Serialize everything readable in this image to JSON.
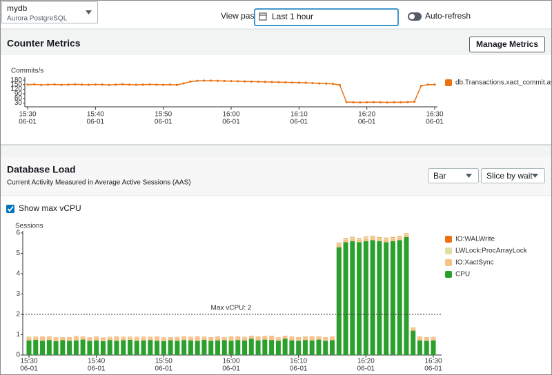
{
  "header": {
    "db_name": "mydb",
    "engine": "Aurora PostgreSQL",
    "view_past_label": "View past",
    "view_past_value": "Last 1 hour",
    "auto_refresh": "Auto-refresh"
  },
  "counter_metrics": {
    "title": "Counter Metrics",
    "button": "Manage Metrics"
  },
  "database_load": {
    "title": "Database Load",
    "subtitle": "Current Activity Measured in Average Active Sessions (AAS)",
    "chart_type_select": "Bar",
    "slice_select": "Slice by wait",
    "show_max_vcpu": "Show max vCPU"
  },
  "chart_data": [
    {
      "type": "line",
      "ylabel": "Commits/s",
      "categories": [
        [
          "15:30",
          "06-01"
        ],
        null,
        null,
        null,
        null,
        null,
        null,
        null,
        null,
        null,
        [
          "15:40",
          "06-01"
        ],
        null,
        null,
        null,
        null,
        null,
        null,
        null,
        null,
        null,
        [
          "15:50",
          "06-01"
        ],
        null,
        null,
        null,
        null,
        null,
        null,
        null,
        null,
        null,
        [
          "16:00",
          "06-01"
        ],
        null,
        null,
        null,
        null,
        null,
        null,
        null,
        null,
        null,
        [
          "16:10",
          "06-01"
        ],
        null,
        null,
        null,
        null,
        null,
        null,
        null,
        null,
        null,
        [
          "16:20",
          "06-01"
        ],
        null,
        null,
        null,
        null,
        null,
        null,
        null,
        null,
        null,
        [
          "16:30",
          "06-01"
        ]
      ],
      "series": [
        {
          "name": "db.Transactions.xact_commit.avg",
          "color": "#ec7211",
          "values": [
            150,
            152,
            148,
            150,
            151,
            149,
            150,
            152,
            150,
            149,
            151,
            150,
            148,
            150,
            152,
            150,
            149,
            150,
            151,
            150,
            149,
            150,
            148,
            158,
            170,
            175,
            176,
            176,
            175,
            174,
            173,
            172,
            171,
            170,
            169,
            168,
            167,
            166,
            165,
            164,
            163,
            162,
            160,
            158,
            157,
            155,
            148,
            36,
            35,
            34,
            35,
            36,
            35,
            34,
            35,
            35,
            36,
            38,
            142,
            150,
            150
          ]
        }
      ],
      "ylim": [
        5,
        185
      ],
      "yticks": [
        30,
        60,
        90,
        120,
        150,
        180
      ]
    },
    {
      "type": "stacked_bar",
      "ylabel": "Sessions",
      "categories": [
        [
          "15:30",
          "06-01"
        ],
        null,
        null,
        null,
        null,
        null,
        null,
        null,
        null,
        null,
        [
          "15:40",
          "06-01"
        ],
        null,
        null,
        null,
        null,
        null,
        null,
        null,
        null,
        null,
        [
          "15:50",
          "06-01"
        ],
        null,
        null,
        null,
        null,
        null,
        null,
        null,
        null,
        null,
        [
          "16:00",
          "06-01"
        ],
        null,
        null,
        null,
        null,
        null,
        null,
        null,
        null,
        null,
        [
          "16:10",
          "06-01"
        ],
        null,
        null,
        null,
        null,
        null,
        null,
        null,
        null,
        null,
        [
          "16:20",
          "06-01"
        ],
        null,
        null,
        null,
        null,
        null,
        null,
        null,
        null,
        null,
        [
          "16:30",
          "06-01"
        ]
      ],
      "series": [
        {
          "name": "IO:WALWrite",
          "color": "#ec7211",
          "values": [
            0.01,
            0.01,
            0.01,
            0.01,
            0.01,
            0.01,
            0.01,
            0.01,
            0.01,
            0.01,
            0.01,
            0.01,
            0.01,
            0.01,
            0.01,
            0.01,
            0.01,
            0.01,
            0.01,
            0.01,
            0.01,
            0.01,
            0.01,
            0.01,
            0.01,
            0.01,
            0.01,
            0.01,
            0.01,
            0.01,
            0.01,
            0.01,
            0.01,
            0.01,
            0.01,
            0.01,
            0.01,
            0.01,
            0.01,
            0.01,
            0.01,
            0.01,
            0.01,
            0.01,
            0.01,
            0.01,
            0.02,
            0.02,
            0.02,
            0.02,
            0.02,
            0.02,
            0.02,
            0.02,
            0.02,
            0.02,
            0.02,
            0.01,
            0.01,
            0.01,
            0.01
          ]
        },
        {
          "name": "LWLock:ProcArrayLock",
          "color": "#dfe0a8",
          "values": [
            0.02,
            0.02,
            0.02,
            0.02,
            0.02,
            0.02,
            0.02,
            0.02,
            0.02,
            0.02,
            0.02,
            0.02,
            0.02,
            0.02,
            0.02,
            0.02,
            0.02,
            0.02,
            0.02,
            0.02,
            0.02,
            0.02,
            0.02,
            0.02,
            0.02,
            0.02,
            0.02,
            0.02,
            0.02,
            0.02,
            0.02,
            0.02,
            0.02,
            0.02,
            0.02,
            0.02,
            0.02,
            0.02,
            0.02,
            0.02,
            0.02,
            0.02,
            0.02,
            0.02,
            0.02,
            0.02,
            0.06,
            0.06,
            0.06,
            0.06,
            0.06,
            0.06,
            0.06,
            0.06,
            0.06,
            0.06,
            0.06,
            0.02,
            0.02,
            0.02,
            0.02
          ]
        },
        {
          "name": "IO:XactSync",
          "color": "#f8c08a",
          "values": [
            0.15,
            0.12,
            0.18,
            0.14,
            0.16,
            0.12,
            0.15,
            0.18,
            0.12,
            0.14,
            0.16,
            0.15,
            0.12,
            0.18,
            0.14,
            0.12,
            0.16,
            0.15,
            0.13,
            0.18,
            0.15,
            0.12,
            0.16,
            0.14,
            0.15,
            0.18,
            0.12,
            0.15,
            0.16,
            0.12,
            0.18,
            0.15,
            0.14,
            0.12,
            0.16,
            0.15,
            0.18,
            0.14,
            0.12,
            0.16,
            0.15,
            0.14,
            0.18,
            0.12,
            0.15,
            0.16,
            0.14,
            0.12,
            0.13,
            0.12,
            0.14,
            0.13,
            0.12,
            0.14,
            0.12,
            0.13,
            0.1,
            0.12,
            0.16,
            0.15,
            0.14
          ]
        },
        {
          "name": "CPU",
          "color": "#2ca02c",
          "values": [
            0.72,
            0.75,
            0.7,
            0.74,
            0.68,
            0.73,
            0.7,
            0.72,
            0.76,
            0.7,
            0.72,
            0.68,
            0.74,
            0.7,
            0.73,
            0.75,
            0.7,
            0.72,
            0.74,
            0.7,
            0.68,
            0.73,
            0.7,
            0.74,
            0.72,
            0.7,
            0.75,
            0.7,
            0.72,
            0.73,
            0.7,
            0.74,
            0.72,
            0.8,
            0.72,
            0.76,
            0.74,
            0.7,
            0.8,
            0.72,
            0.7,
            0.74,
            0.72,
            0.76,
            0.7,
            0.73,
            5.3,
            5.55,
            5.6,
            5.55,
            5.6,
            5.65,
            5.6,
            5.55,
            5.6,
            5.65,
            5.8,
            1.2,
            0.72,
            0.7,
            0.72
          ]
        }
      ],
      "ylim": [
        0,
        6
      ],
      "yticks": [
        0,
        1,
        2,
        3,
        4,
        5,
        6
      ],
      "max_vcpu": {
        "value": 2,
        "label": "Max vCPU: 2"
      }
    }
  ]
}
